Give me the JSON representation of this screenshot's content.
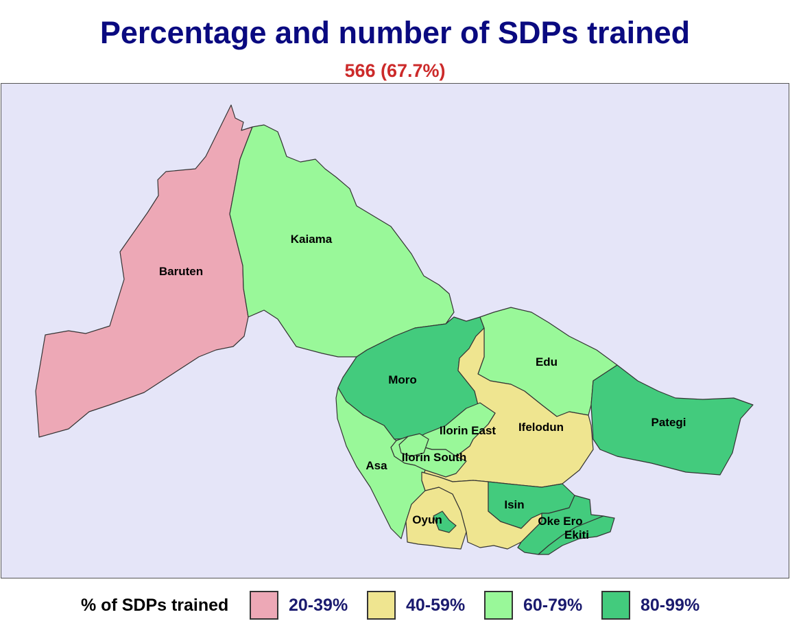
{
  "title": "Percentage and number of SDPs trained",
  "subtitle": "566 (67.7%)",
  "colors": {
    "background": "#e5e5f8",
    "20-39": "#eda8b6",
    "40-59": "#efe590",
    "60-79": "#99f899",
    "80-99": "#43cb7d",
    "title": "#0a0a80",
    "subtitle": "#cc2a2a"
  },
  "regions": [
    {
      "name": "Baruten",
      "category": "20-39%"
    },
    {
      "name": "Kaiama",
      "category": "60-79%"
    },
    {
      "name": "Moro",
      "category": "80-99%"
    },
    {
      "name": "Edu",
      "category": "60-79%"
    },
    {
      "name": "Pategi",
      "category": "80-99%"
    },
    {
      "name": "Ifelodun",
      "category": "40-59%"
    },
    {
      "name": "Ilorin East",
      "category": "60-79%"
    },
    {
      "name": "Ilorin South",
      "category": "60-79%"
    },
    {
      "name": "Asa",
      "category": "60-79%"
    },
    {
      "name": "Oyun",
      "category": "40-59%"
    },
    {
      "name": "Isin",
      "category": "80-99%"
    },
    {
      "name": "Oke Ero",
      "category": "80-99%"
    },
    {
      "name": "Ekiti",
      "category": "80-99%"
    }
  ],
  "legend": {
    "title": "% of SDPs trained",
    "items": [
      {
        "label": "20-39%",
        "color": "#eda8b6"
      },
      {
        "label": "40-59%",
        "color": "#efe590"
      },
      {
        "label": "60-79%",
        "color": "#99f899"
      },
      {
        "label": "80-99%",
        "color": "#43cb7d"
      }
    ]
  }
}
